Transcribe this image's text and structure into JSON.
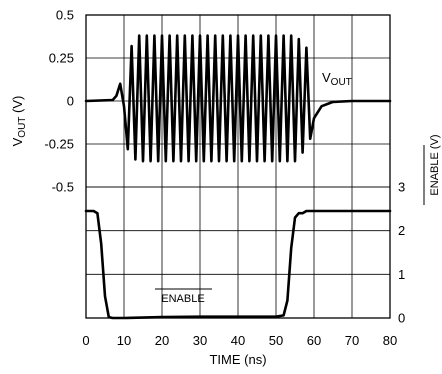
{
  "chart_data": {
    "type": "line",
    "xlabel": "TIME (ns)",
    "x_ticks": [
      "0",
      "10",
      "20",
      "30",
      "40",
      "50",
      "60",
      "70",
      "80"
    ],
    "xlim": [
      0,
      80
    ],
    "left_axis": {
      "label_main": "V",
      "label_sub": "OUT",
      "label_tail": " (V)",
      "range": [
        -0.5,
        0.5
      ],
      "ticks": [
        "0.5",
        "0.25",
        "0",
        "-0.25",
        "-0.5"
      ]
    },
    "right_axis": {
      "label": "ENABLE (V)",
      "label_overline_word": "ENABLE",
      "range": [
        0,
        3
      ],
      "ticks": [
        "3",
        "2",
        "1",
        "0"
      ]
    },
    "grid": true,
    "series": [
      {
        "name_main": "V",
        "name_sub": "OUT",
        "axis": "left",
        "baseline": 0,
        "x": [
          0,
          7,
          8,
          9,
          10,
          11,
          12,
          13,
          14,
          15,
          16,
          17,
          18,
          19,
          20,
          21,
          22,
          23,
          24,
          25,
          26,
          27,
          28,
          29,
          30,
          31,
          32,
          33,
          34,
          35,
          36,
          37,
          38,
          39,
          40,
          41,
          42,
          43,
          44,
          45,
          46,
          47,
          48,
          49,
          50,
          51,
          52,
          53,
          54,
          55,
          56,
          57,
          58,
          59,
          60,
          62,
          65,
          70,
          80
        ],
        "y": [
          0,
          0.005,
          0.03,
          0.1,
          -0.03,
          -0.28,
          0.32,
          -0.34,
          0.38,
          -0.35,
          0.38,
          -0.35,
          0.38,
          -0.35,
          0.38,
          -0.35,
          0.38,
          -0.35,
          0.38,
          -0.35,
          0.38,
          -0.35,
          0.38,
          -0.35,
          0.38,
          -0.35,
          0.38,
          -0.35,
          0.38,
          -0.35,
          0.38,
          -0.35,
          0.38,
          -0.35,
          0.38,
          -0.35,
          0.38,
          -0.35,
          0.38,
          -0.35,
          0.38,
          -0.35,
          0.38,
          -0.35,
          0.38,
          -0.35,
          0.38,
          -0.35,
          0.38,
          -0.35,
          0.36,
          -0.3,
          0.31,
          -0.22,
          -0.1,
          -0.03,
          -0.005,
          0,
          0
        ]
      },
      {
        "name": "ENABLE",
        "axis": "right",
        "x": [
          0,
          2,
          3,
          4,
          5,
          6,
          7,
          10,
          20,
          30,
          40,
          50,
          52,
          53,
          54,
          55,
          56,
          57,
          58,
          60,
          70,
          80
        ],
        "y": [
          2.45,
          2.45,
          2.4,
          1.7,
          0.5,
          0.02,
          0.0,
          0.0,
          0.02,
          0.03,
          0.03,
          0.03,
          0.06,
          0.4,
          1.6,
          2.3,
          2.4,
          2.4,
          2.45,
          2.45,
          2.45,
          2.45
        ]
      }
    ]
  }
}
